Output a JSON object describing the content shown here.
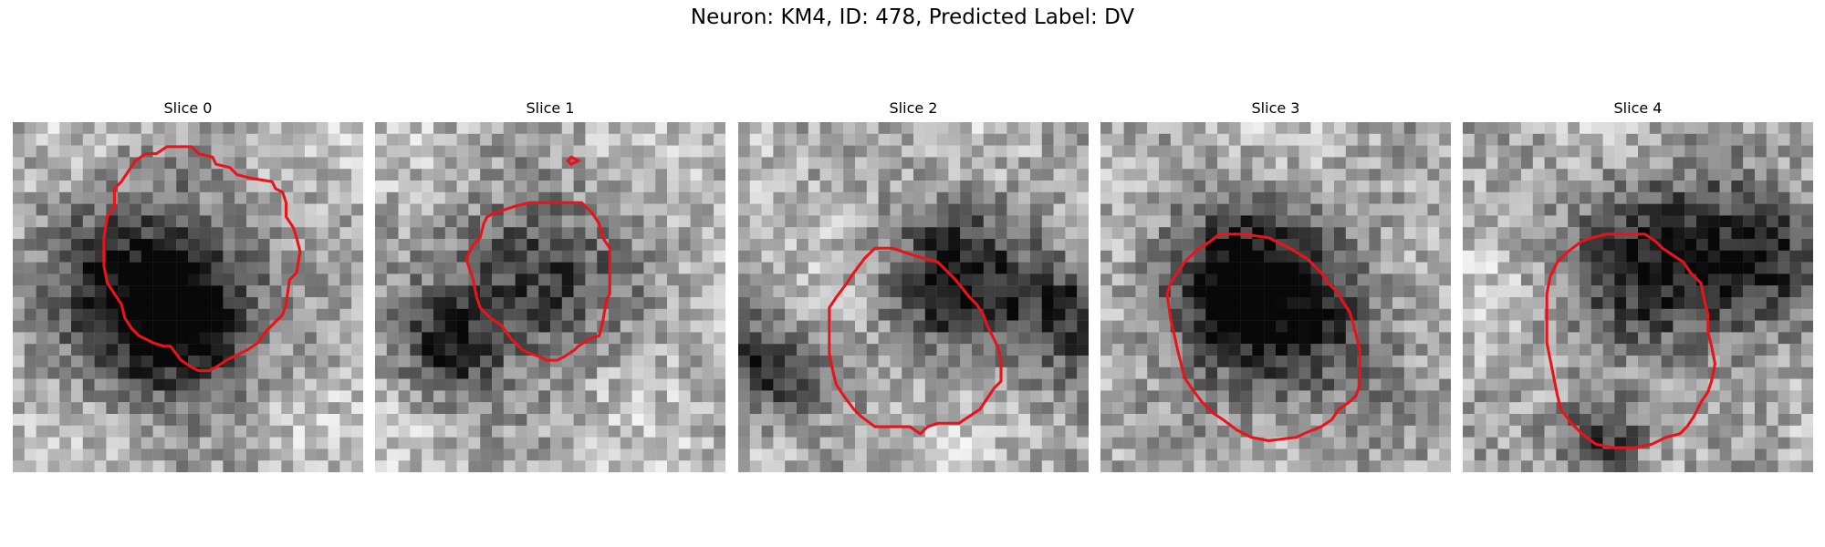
{
  "figure": {
    "title": "Neuron: KM4, ID: 478, Predicted Label: DV"
  },
  "panels": [
    {
      "title": "Slice 0",
      "contour_color": "#e8141a",
      "contour": [
        [
          0.44,
          0.07
        ],
        [
          0.51,
          0.07
        ],
        [
          0.53,
          0.09
        ],
        [
          0.57,
          0.1
        ],
        [
          0.58,
          0.12
        ],
        [
          0.62,
          0.13
        ],
        [
          0.64,
          0.15
        ],
        [
          0.68,
          0.16
        ],
        [
          0.74,
          0.17
        ],
        [
          0.75,
          0.19
        ],
        [
          0.77,
          0.2
        ],
        [
          0.78,
          0.23
        ],
        [
          0.78,
          0.27
        ],
        [
          0.8,
          0.3
        ],
        [
          0.81,
          0.33
        ],
        [
          0.82,
          0.37
        ],
        [
          0.81,
          0.43
        ],
        [
          0.79,
          0.45
        ],
        [
          0.78,
          0.52
        ],
        [
          0.77,
          0.55
        ],
        [
          0.75,
          0.57
        ],
        [
          0.72,
          0.6
        ],
        [
          0.7,
          0.63
        ],
        [
          0.67,
          0.65
        ],
        [
          0.65,
          0.66
        ],
        [
          0.61,
          0.68
        ],
        [
          0.58,
          0.7
        ],
        [
          0.56,
          0.71
        ],
        [
          0.53,
          0.71
        ],
        [
          0.51,
          0.7
        ],
        [
          0.48,
          0.68
        ],
        [
          0.45,
          0.64
        ],
        [
          0.43,
          0.64
        ],
        [
          0.4,
          0.63
        ],
        [
          0.36,
          0.61
        ],
        [
          0.34,
          0.59
        ],
        [
          0.32,
          0.56
        ],
        [
          0.31,
          0.52
        ],
        [
          0.29,
          0.49
        ],
        [
          0.27,
          0.46
        ],
        [
          0.26,
          0.41
        ],
        [
          0.26,
          0.33
        ],
        [
          0.27,
          0.27
        ],
        [
          0.29,
          0.24
        ],
        [
          0.29,
          0.19
        ],
        [
          0.31,
          0.17
        ],
        [
          0.33,
          0.14
        ],
        [
          0.35,
          0.11
        ],
        [
          0.38,
          0.09
        ],
        [
          0.41,
          0.09
        ]
      ],
      "extra_contours": []
    },
    {
      "title": "Slice 1",
      "contour_color": "#e8141a",
      "contour": [
        [
          0.4,
          0.24
        ],
        [
          0.44,
          0.23
        ],
        [
          0.51,
          0.23
        ],
        [
          0.59,
          0.23
        ],
        [
          0.62,
          0.26
        ],
        [
          0.64,
          0.29
        ],
        [
          0.65,
          0.33
        ],
        [
          0.67,
          0.36
        ],
        [
          0.67,
          0.42
        ],
        [
          0.67,
          0.49
        ],
        [
          0.66,
          0.51
        ],
        [
          0.65,
          0.57
        ],
        [
          0.64,
          0.61
        ],
        [
          0.61,
          0.62
        ],
        [
          0.58,
          0.64
        ],
        [
          0.57,
          0.65
        ],
        [
          0.54,
          0.67
        ],
        [
          0.52,
          0.68
        ],
        [
          0.49,
          0.68
        ],
        [
          0.47,
          0.67
        ],
        [
          0.44,
          0.66
        ],
        [
          0.42,
          0.65
        ],
        [
          0.39,
          0.62
        ],
        [
          0.36,
          0.58
        ],
        [
          0.33,
          0.56
        ],
        [
          0.3,
          0.53
        ],
        [
          0.29,
          0.5
        ],
        [
          0.28,
          0.45
        ],
        [
          0.27,
          0.42
        ],
        [
          0.26,
          0.39
        ],
        [
          0.27,
          0.37
        ],
        [
          0.28,
          0.35
        ],
        [
          0.3,
          0.33
        ],
        [
          0.31,
          0.29
        ],
        [
          0.32,
          0.27
        ],
        [
          0.34,
          0.26
        ],
        [
          0.37,
          0.25
        ]
      ],
      "extra_contours": [
        [
          [
            0.56,
            0.1
          ],
          [
            0.58,
            0.11
          ],
          [
            0.56,
            0.12
          ],
          [
            0.55,
            0.11
          ]
        ]
      ]
    },
    {
      "title": "Slice 2",
      "contour_color": "#e8141a",
      "contour": [
        [
          0.39,
          0.36
        ],
        [
          0.44,
          0.36
        ],
        [
          0.5,
          0.38
        ],
        [
          0.57,
          0.4
        ],
        [
          0.62,
          0.45
        ],
        [
          0.66,
          0.5
        ],
        [
          0.68,
          0.52
        ],
        [
          0.7,
          0.55
        ],
        [
          0.71,
          0.58
        ],
        [
          0.73,
          0.62
        ],
        [
          0.74,
          0.64
        ],
        [
          0.75,
          0.68
        ],
        [
          0.75,
          0.74
        ],
        [
          0.73,
          0.76
        ],
        [
          0.71,
          0.79
        ],
        [
          0.69,
          0.82
        ],
        [
          0.66,
          0.84
        ],
        [
          0.63,
          0.86
        ],
        [
          0.57,
          0.86
        ],
        [
          0.54,
          0.87
        ],
        [
          0.52,
          0.89
        ],
        [
          0.49,
          0.87
        ],
        [
          0.39,
          0.87
        ],
        [
          0.35,
          0.84
        ],
        [
          0.33,
          0.82
        ],
        [
          0.3,
          0.78
        ],
        [
          0.28,
          0.75
        ],
        [
          0.27,
          0.71
        ],
        [
          0.26,
          0.66
        ],
        [
          0.26,
          0.58
        ],
        [
          0.26,
          0.53
        ],
        [
          0.28,
          0.5
        ],
        [
          0.31,
          0.46
        ],
        [
          0.33,
          0.43
        ],
        [
          0.36,
          0.39
        ]
      ],
      "extra_contours": []
    },
    {
      "title": "Slice 3",
      "contour_color": "#e8141a",
      "contour": [
        [
          0.34,
          0.32
        ],
        [
          0.41,
          0.32
        ],
        [
          0.48,
          0.33
        ],
        [
          0.54,
          0.36
        ],
        [
          0.59,
          0.39
        ],
        [
          0.63,
          0.43
        ],
        [
          0.65,
          0.46
        ],
        [
          0.68,
          0.49
        ],
        [
          0.69,
          0.51
        ],
        [
          0.71,
          0.54
        ],
        [
          0.72,
          0.57
        ],
        [
          0.74,
          0.65
        ],
        [
          0.74,
          0.75
        ],
        [
          0.73,
          0.78
        ],
        [
          0.71,
          0.8
        ],
        [
          0.68,
          0.82
        ],
        [
          0.66,
          0.85
        ],
        [
          0.63,
          0.87
        ],
        [
          0.58,
          0.89
        ],
        [
          0.56,
          0.9
        ],
        [
          0.48,
          0.91
        ],
        [
          0.43,
          0.9
        ],
        [
          0.39,
          0.88
        ],
        [
          0.35,
          0.85
        ],
        [
          0.32,
          0.83
        ],
        [
          0.29,
          0.8
        ],
        [
          0.26,
          0.76
        ],
        [
          0.24,
          0.73
        ],
        [
          0.23,
          0.69
        ],
        [
          0.22,
          0.65
        ],
        [
          0.2,
          0.56
        ],
        [
          0.19,
          0.49
        ],
        [
          0.2,
          0.46
        ],
        [
          0.22,
          0.43
        ],
        [
          0.24,
          0.4
        ],
        [
          0.27,
          0.37
        ],
        [
          0.3,
          0.35
        ]
      ],
      "extra_contours": []
    },
    {
      "title": "Slice 4",
      "contour_color": "#e8141a",
      "contour": [
        [
          0.41,
          0.32
        ],
        [
          0.45,
          0.32
        ],
        [
          0.52,
          0.32
        ],
        [
          0.55,
          0.34
        ],
        [
          0.57,
          0.36
        ],
        [
          0.6,
          0.38
        ],
        [
          0.63,
          0.4
        ],
        [
          0.65,
          0.43
        ],
        [
          0.68,
          0.46
        ],
        [
          0.69,
          0.51
        ],
        [
          0.7,
          0.55
        ],
        [
          0.7,
          0.6
        ],
        [
          0.71,
          0.64
        ],
        [
          0.72,
          0.69
        ],
        [
          0.71,
          0.74
        ],
        [
          0.7,
          0.77
        ],
        [
          0.68,
          0.8
        ],
        [
          0.66,
          0.84
        ],
        [
          0.64,
          0.87
        ],
        [
          0.62,
          0.89
        ],
        [
          0.58,
          0.9
        ],
        [
          0.54,
          0.92
        ],
        [
          0.49,
          0.93
        ],
        [
          0.43,
          0.93
        ],
        [
          0.38,
          0.92
        ],
        [
          0.34,
          0.89
        ],
        [
          0.31,
          0.86
        ],
        [
          0.28,
          0.82
        ],
        [
          0.27,
          0.78
        ],
        [
          0.26,
          0.73
        ],
        [
          0.25,
          0.68
        ],
        [
          0.24,
          0.63
        ],
        [
          0.24,
          0.56
        ],
        [
          0.24,
          0.49
        ],
        [
          0.25,
          0.44
        ],
        [
          0.27,
          0.4
        ],
        [
          0.3,
          0.37
        ],
        [
          0.34,
          0.34
        ],
        [
          0.37,
          0.33
        ]
      ],
      "extra_contours": []
    }
  ]
}
